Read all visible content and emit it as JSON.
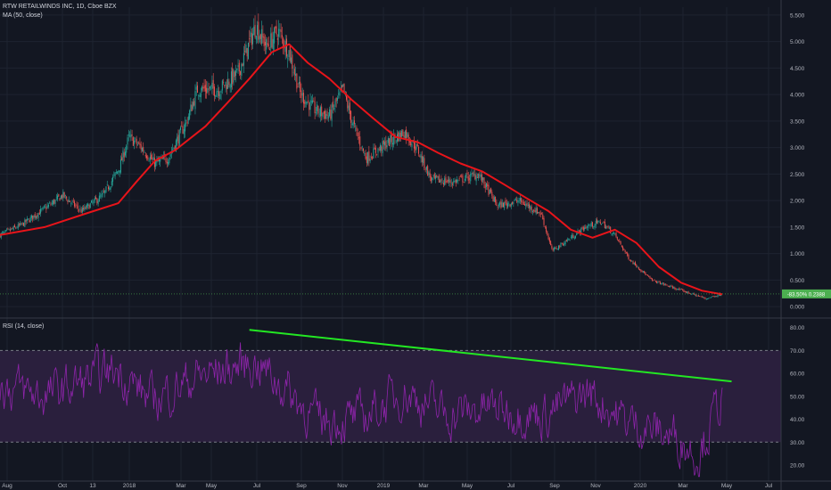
{
  "header": {
    "symbol_line": "RTW RETAILWINDS INC, 1D, Cboe BZX",
    "ma_label": "MA (50, close)",
    "rsi_label": "RSI (14, close)"
  },
  "colors": {
    "background": "#131722",
    "grid": "#1e2330",
    "axis_text": "#b2b5be",
    "candle_up": "#26a69a",
    "candle_down": "#ef5350",
    "ma": "#e8141a",
    "trendline": "#23e823",
    "rsi": "#8e24aa",
    "rsi_band": "#2a1f3d",
    "price_tag": "#4caf50"
  },
  "chart_data": [
    {
      "type": "candlestick",
      "title": "RTW RETAILWINDS INC, 1D, Cboe BZX",
      "ylim": [
        -0.2,
        5.65
      ],
      "y_ticks": [
        "0.000",
        "0.500",
        "1.000",
        "1.500",
        "2.000",
        "2.500",
        "3.000",
        "3.500",
        "4.000",
        "4.500",
        "5.000",
        "5.500"
      ],
      "x_ticks": [
        "Aug",
        "Oct",
        "13",
        "2018",
        "Mar",
        "May",
        "Jul",
        "Sep",
        "Nov",
        "2019",
        "Mar",
        "May",
        "Jul",
        "Sep",
        "Nov",
        "2020",
        "Mar",
        "May",
        "Jul"
      ],
      "price_x_range": [
        "2017-07-20",
        "2020-04-17"
      ],
      "price_path": [
        {
          "x": "2017-07-20",
          "y": 1.35
        },
        {
          "x": "2017-08-20",
          "y": 1.55
        },
        {
          "x": "2017-09-20",
          "y": 1.85
        },
        {
          "x": "2017-10-15",
          "y": 2.1
        },
        {
          "x": "2017-11-10",
          "y": 1.8
        },
        {
          "x": "2017-12-10",
          "y": 2.1
        },
        {
          "x": "2018-01-01",
          "y": 2.6
        },
        {
          "x": "2018-01-15",
          "y": 3.2
        },
        {
          "x": "2018-02-01",
          "y": 3.0
        },
        {
          "x": "2018-02-20",
          "y": 2.7
        },
        {
          "x": "2018-03-10",
          "y": 2.8
        },
        {
          "x": "2018-04-05",
          "y": 3.5
        },
        {
          "x": "2018-04-20",
          "y": 4.1
        },
        {
          "x": "2018-05-20",
          "y": 4.1
        },
        {
          "x": "2018-06-15",
          "y": 4.4
        },
        {
          "x": "2018-07-10",
          "y": 5.3
        },
        {
          "x": "2018-07-25",
          "y": 4.9
        },
        {
          "x": "2018-08-10",
          "y": 5.2
        },
        {
          "x": "2018-08-25",
          "y": 4.8
        },
        {
          "x": "2018-09-10",
          "y": 4.0
        },
        {
          "x": "2018-10-01",
          "y": 3.7
        },
        {
          "x": "2018-10-20",
          "y": 3.6
        },
        {
          "x": "2018-11-08",
          "y": 4.1
        },
        {
          "x": "2018-11-20",
          "y": 3.5
        },
        {
          "x": "2018-12-10",
          "y": 2.8
        },
        {
          "x": "2019-01-10",
          "y": 3.1
        },
        {
          "x": "2019-02-01",
          "y": 3.3
        },
        {
          "x": "2019-02-20",
          "y": 2.95
        },
        {
          "x": "2019-03-10",
          "y": 2.4
        },
        {
          "x": "2019-04-10",
          "y": 2.35
        },
        {
          "x": "2019-05-15",
          "y": 2.5
        },
        {
          "x": "2019-06-10",
          "y": 1.9
        },
        {
          "x": "2019-07-10",
          "y": 2.0
        },
        {
          "x": "2019-08-10",
          "y": 1.75
        },
        {
          "x": "2019-08-25",
          "y": 1.05
        },
        {
          "x": "2019-09-15",
          "y": 1.25
        },
        {
          "x": "2019-10-10",
          "y": 1.5
        },
        {
          "x": "2019-11-01",
          "y": 1.6
        },
        {
          "x": "2019-11-20",
          "y": 1.35
        },
        {
          "x": "2019-12-10",
          "y": 0.9
        },
        {
          "x": "2020-01-10",
          "y": 0.5
        },
        {
          "x": "2020-02-10",
          "y": 0.35
        },
        {
          "x": "2020-03-10",
          "y": 0.22
        },
        {
          "x": "2020-03-25",
          "y": 0.15
        },
        {
          "x": "2020-04-17",
          "y": 0.24
        }
      ],
      "series": [
        {
          "name": "MA (50, close)",
          "points": [
            {
              "x": "2017-07-20",
              "y": 1.35
            },
            {
              "x": "2017-09-20",
              "y": 1.5
            },
            {
              "x": "2017-11-15",
              "y": 1.75
            },
            {
              "x": "2017-12-31",
              "y": 1.95
            },
            {
              "x": "2018-01-25",
              "y": 2.35
            },
            {
              "x": "2018-02-20",
              "y": 2.75
            },
            {
              "x": "2018-03-20",
              "y": 2.95
            },
            {
              "x": "2018-05-01",
              "y": 3.4
            },
            {
              "x": "2018-06-01",
              "y": 3.85
            },
            {
              "x": "2018-07-01",
              "y": 4.3
            },
            {
              "x": "2018-08-01",
              "y": 4.8
            },
            {
              "x": "2018-08-25",
              "y": 4.95
            },
            {
              "x": "2018-09-20",
              "y": 4.6
            },
            {
              "x": "2018-10-20",
              "y": 4.3
            },
            {
              "x": "2018-11-20",
              "y": 3.9
            },
            {
              "x": "2018-12-20",
              "y": 3.55
            },
            {
              "x": "2019-01-20",
              "y": 3.2
            },
            {
              "x": "2019-02-20",
              "y": 3.1
            },
            {
              "x": "2019-03-20",
              "y": 2.9
            },
            {
              "x": "2019-04-20",
              "y": 2.7
            },
            {
              "x": "2019-05-20",
              "y": 2.55
            },
            {
              "x": "2019-06-20",
              "y": 2.3
            },
            {
              "x": "2019-07-20",
              "y": 2.05
            },
            {
              "x": "2019-08-20",
              "y": 1.8
            },
            {
              "x": "2019-09-20",
              "y": 1.45
            },
            {
              "x": "2019-10-20",
              "y": 1.3
            },
            {
              "x": "2019-11-20",
              "y": 1.45
            },
            {
              "x": "2019-12-20",
              "y": 1.2
            },
            {
              "x": "2020-01-20",
              "y": 0.75
            },
            {
              "x": "2020-02-20",
              "y": 0.45
            },
            {
              "x": "2020-03-20",
              "y": 0.3
            },
            {
              "x": "2020-04-17",
              "y": 0.23
            }
          ]
        }
      ],
      "last_price_label": "-83.50%   0.2388",
      "last_price": 0.2388
    },
    {
      "type": "line",
      "title": "RSI (14, close)",
      "ylim": [
        13,
        83
      ],
      "y_ticks": [
        "20.00",
        "30.00",
        "40.00",
        "50.00",
        "60.00",
        "70.00",
        "80.00"
      ],
      "band": [
        30,
        70
      ],
      "rsi_x_range": [
        "2017-07-20",
        "2020-04-17"
      ],
      "rsi_profile": [
        {
          "x": "2017-07-20",
          "y": 55
        },
        {
          "x": "2017-09-20",
          "y": 50
        },
        {
          "x": "2017-12-31",
          "y": 62
        },
        {
          "x": "2018-02-15",
          "y": 48
        },
        {
          "x": "2018-04-15",
          "y": 58
        },
        {
          "x": "2018-07-10",
          "y": 65
        },
        {
          "x": "2018-08-25",
          "y": 52
        },
        {
          "x": "2018-10-01",
          "y": 40
        },
        {
          "x": "2018-12-01",
          "y": 40
        },
        {
          "x": "2019-02-01",
          "y": 52
        },
        {
          "x": "2019-04-01",
          "y": 42
        },
        {
          "x": "2019-06-01",
          "y": 45
        },
        {
          "x": "2019-08-15",
          "y": 42
        },
        {
          "x": "2019-10-15",
          "y": 52
        },
        {
          "x": "2019-12-01",
          "y": 40
        },
        {
          "x": "2020-02-15",
          "y": 32
        },
        {
          "x": "2020-03-15",
          "y": 25
        },
        {
          "x": "2020-04-17",
          "y": 50
        }
      ],
      "trendline": [
        {
          "x": "2018-07-01",
          "y": 79.0
        },
        {
          "x": "2020-04-30",
          "y": 56.5
        }
      ]
    }
  ]
}
